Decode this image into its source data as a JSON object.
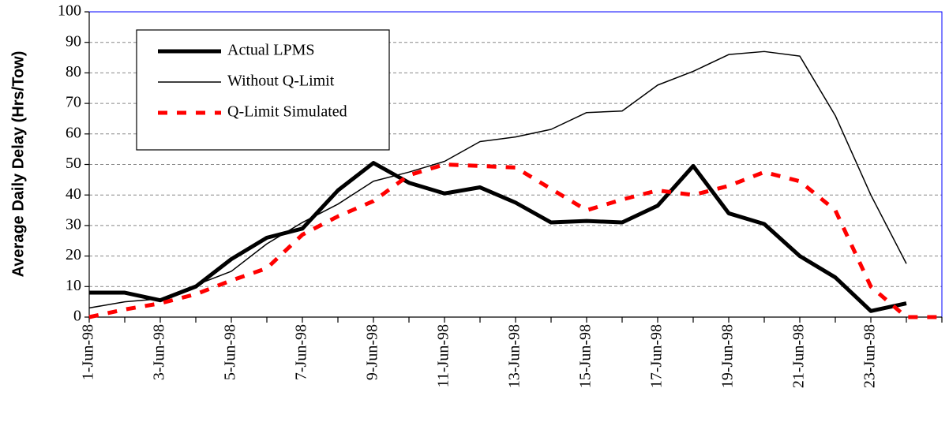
{
  "chart_data": {
    "type": "line",
    "y_label": "Average Daily Delay (Hrs/Tow)",
    "categories": [
      "1-Jun-98",
      null,
      "3-Jun-98",
      null,
      "5-Jun-98",
      null,
      "7-Jun-98",
      null,
      "9-Jun-98",
      null,
      "11-Jun-98",
      null,
      "13-Jun-98",
      null,
      "15-Jun-98",
      null,
      "17-Jun-98",
      null,
      "19-Jun-98",
      null,
      "21-Jun-98",
      null,
      "23-Jun-98",
      null,
      null
    ],
    "series": [
      {
        "name": "Actual LPMS",
        "color": "#000000",
        "values": [
          8,
          8,
          5.5,
          10,
          19,
          26,
          29,
          41.5,
          50.5,
          44,
          40.5,
          42.5,
          37.5,
          31,
          31.5,
          31,
          36.5,
          49.5,
          34,
          30.5,
          20,
          13,
          2,
          4.5,
          null
        ]
      },
      {
        "name": "Without Q-Limit",
        "color": "#000000",
        "values": [
          3,
          5,
          6,
          10.5,
          15,
          24,
          31,
          37,
          44.5,
          47.5,
          51,
          57.5,
          59,
          61.5,
          67,
          67.5,
          76,
          80.5,
          86,
          87,
          85.5,
          66,
          40,
          17.5,
          null
        ]
      },
      {
        "name": "Q-Limit Simulated",
        "color": "#ff0000",
        "values": [
          0,
          2.5,
          4.5,
          7.5,
          12,
          16,
          27,
          33,
          38,
          46.5,
          50,
          49.5,
          49,
          42,
          35,
          38.5,
          41.5,
          40,
          43,
          47.5,
          44.5,
          35,
          10,
          0,
          0
        ]
      }
    ],
    "ylim": [
      0,
      100
    ],
    "yticks": [
      0,
      10,
      20,
      30,
      40,
      50,
      60,
      70,
      80,
      90,
      100
    ],
    "grid": true
  }
}
